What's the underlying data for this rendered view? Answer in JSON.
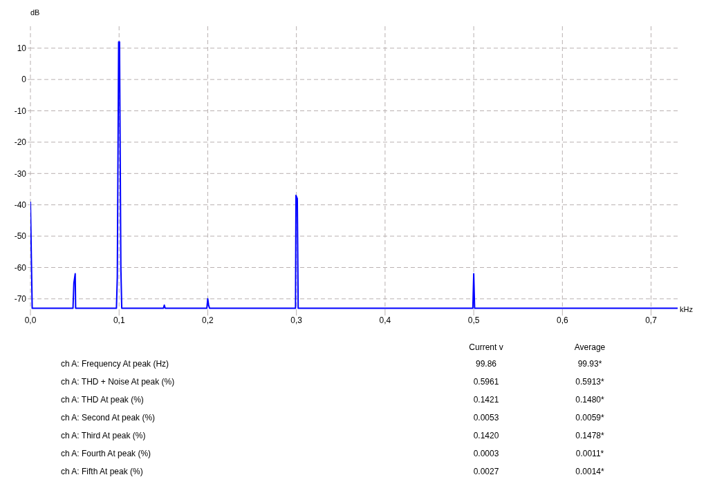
{
  "chart_data": {
    "type": "line",
    "xlabel": "kHz",
    "ylabel": "dB",
    "x": [
      0,
      0.002,
      0.048,
      0.049,
      0.0505,
      0.051,
      0.097,
      0.098,
      0.0995,
      0.1005,
      0.102,
      0.103,
      0.15,
      0.151,
      0.152,
      0.199,
      0.2,
      0.201,
      0.202,
      0.299,
      0.2995,
      0.301,
      0.302,
      0.499,
      0.5,
      0.501,
      0.73
    ],
    "series": [
      {
        "color": "#0000ff",
        "values": [
          -39,
          -73,
          -73,
          -65,
          -62,
          -73,
          -73,
          -63,
          12,
          12,
          -60,
          -73,
          -73,
          -72,
          -73,
          -73,
          -70,
          -72,
          -73,
          -73,
          -37,
          -38,
          -73,
          -73,
          -62,
          -73,
          -73
        ]
      }
    ],
    "xlim": [
      0,
      0.73
    ],
    "ylim": [
      -74,
      17
    ],
    "xticks": [
      {
        "value": 0,
        "label": "0,0"
      },
      {
        "value": 0.1,
        "label": "0,1"
      },
      {
        "value": 0.2,
        "label": "0,2"
      },
      {
        "value": 0.3,
        "label": "0,3"
      },
      {
        "value": 0.4,
        "label": "0,4"
      },
      {
        "value": 0.5,
        "label": "0,5"
      },
      {
        "value": 0.6,
        "label": "0,6"
      },
      {
        "value": 0.7,
        "label": "0,7"
      }
    ],
    "yticks": [
      -70,
      -60,
      -50,
      -40,
      -30,
      -20,
      -10,
      0,
      10
    ],
    "grid": true,
    "marker": "none",
    "line_style": "solid",
    "annotations": [
      "Current v",
      "Average",
      "ch A: Frequency At peak (Hz)",
      "99.86",
      "99.93*",
      "ch A: THD + Noise At peak (%)",
      "0.5961",
      "0.5913*",
      "ch A: THD At peak (%)",
      "0.1421",
      "0.1480*",
      "ch A: Second At peak (%)",
      "0.0053",
      "0.0059*",
      "ch A: Third At peak (%)",
      "0.1420",
      "0.1478*",
      "ch A: Fourth At peak (%)",
      "0.0003",
      "0.0011*",
      "ch A: Fifth At peak (%)",
      "0.0027",
      "0.0014*"
    ]
  }
}
